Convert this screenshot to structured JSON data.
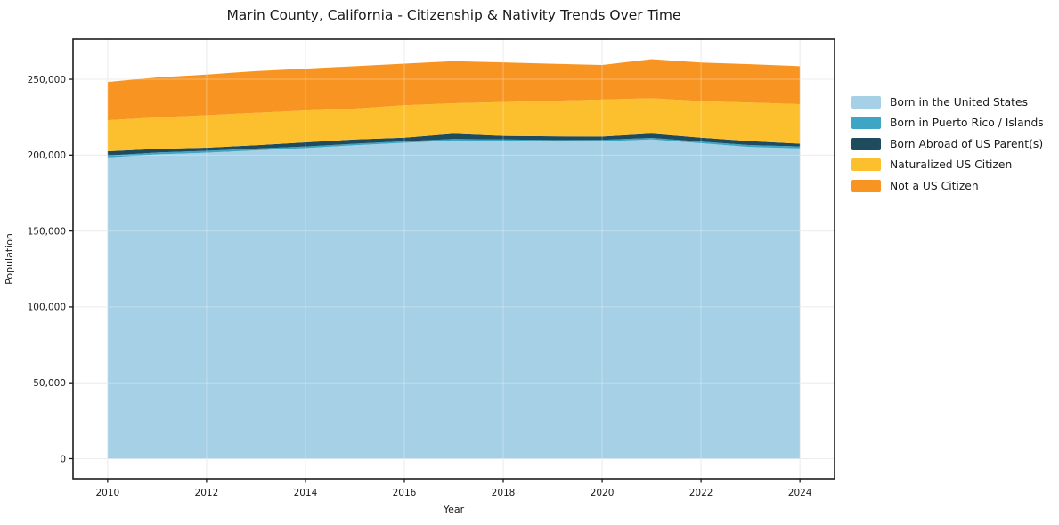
{
  "title": "Marin County, California - Citizenship & Nativity Trends Over Time",
  "colors": {
    "background": "#ffffff",
    "spine": "#1c1c1c",
    "grid": "#e4e4e4",
    "grid_overlay": "rgba(255,255,255,0.30)",
    "text": "#1a1a1a"
  },
  "chart_data": {
    "type": "area",
    "stacked": true,
    "title": "Marin County, California - Citizenship & Nativity Trends Over Time",
    "xlabel": "Year",
    "ylabel": "Population",
    "x": [
      2010,
      2011,
      2012,
      2013,
      2014,
      2015,
      2016,
      2017,
      2018,
      2019,
      2020,
      2021,
      2022,
      2023,
      2024
    ],
    "series": [
      {
        "name": "Born in the United States",
        "color": "#a6d0e6",
        "values": [
          198500,
          200500,
          201600,
          203100,
          204600,
          206500,
          208100,
          209600,
          209300,
          208900,
          209000,
          210300,
          207800,
          205300,
          204400
        ]
      },
      {
        "name": "Born in Puerto Rico / Islands",
        "color": "#3fa5c4",
        "values": [
          1200,
          1200,
          1200,
          1200,
          1100,
          1000,
          1000,
          1000,
          1000,
          1000,
          1000,
          1000,
          1100,
          1300,
          1300
        ]
      },
      {
        "name": "Born Abroad of US Parent(s)",
        "color": "#1f4b5e",
        "values": [
          2800,
          2400,
          2100,
          2200,
          2700,
          2800,
          2400,
          3500,
          2400,
          2500,
          2300,
          2900,
          2600,
          2600,
          1800
        ]
      },
      {
        "name": "Naturalized US Citizen",
        "color": "#fcc02e",
        "values": [
          20500,
          20800,
          21400,
          21400,
          21000,
          20400,
          21400,
          20100,
          22300,
          23400,
          24300,
          23300,
          24100,
          25400,
          26100
        ]
      },
      {
        "name": "Not a US Citizen",
        "color": "#f89522",
        "values": [
          25200,
          26300,
          26800,
          27500,
          27600,
          27900,
          27400,
          27700,
          26100,
          24400,
          22800,
          25700,
          25400,
          25300,
          25000
        ]
      }
    ],
    "x_ticks": [
      2010,
      2012,
      2014,
      2016,
      2018,
      2020,
      2022,
      2024
    ],
    "y_ticks": [
      0,
      50000,
      100000,
      150000,
      200000,
      250000
    ],
    "y_tick_labels": [
      "0",
      "50,000",
      "100,000",
      "150,000",
      "200,000",
      "250,000"
    ],
    "xlim": [
      2009.3,
      2024.7
    ],
    "ylim": [
      -13200,
      276400
    ],
    "grid": true,
    "legend_position": "right-outside"
  }
}
